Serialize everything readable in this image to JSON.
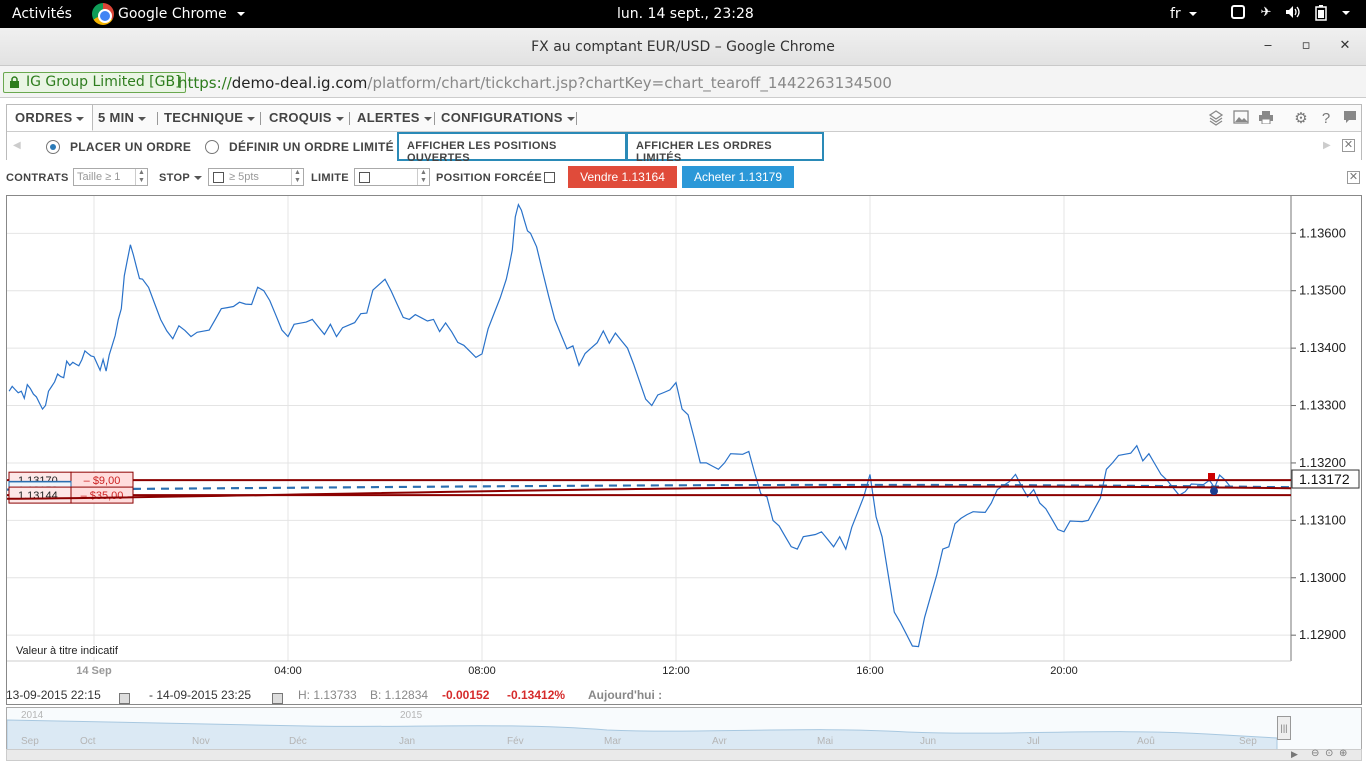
{
  "os": {
    "activities": "Activités",
    "app_name": "Google Chrome",
    "clock": "lun. 14 sept., 23:28",
    "lang": "fr"
  },
  "window": {
    "title": "FX au comptant EUR/USD – Google Chrome"
  },
  "address": {
    "cert": "IG Group Limited [GB]",
    "scheme": "https://",
    "domain": "demo-deal.ig.com",
    "path": "/platform/chart/tickchart.jsp?chartKey=chart_tearoff_1442263134500"
  },
  "menu": {
    "items": [
      "ORDRES",
      "5 MIN",
      "TECHNIQUE",
      "CROQUIS",
      "ALERTES",
      "CONFIGURATIONS"
    ],
    "radio_place": "PLACER UN ORDRE",
    "radio_limit": "DÉFINIR UN ORDRE LIMITÉ",
    "btn_positions": "AFFICHER LES POSITIONS OUVERTES",
    "btn_orders": "AFFICHER LES ORDRES LIMITÉS"
  },
  "ticket": {
    "contracts_label": "CONTRATS",
    "size_placeholder": "Taille ≥ 1",
    "stop_label": "STOP",
    "stop_placeholder": "≥ 5pts",
    "limit_label": "LIMITE",
    "forced_label": "POSITION FORCÉE",
    "sell": "Vendre 1.13164",
    "buy": "Acheter 1.13179"
  },
  "chart": {
    "indicative": "Valeur à titre indicatif",
    "current_price": "1.13172",
    "markers": [
      {
        "price": "1.13170",
        "pnl": "– $9,00",
        "color": "#8b0000",
        "style": "solid"
      },
      {
        "price": "1.13154",
        "pnl": "",
        "color": "#2a6fb0",
        "style": "dashed"
      },
      {
        "price": "1.13153",
        "pnl": "",
        "color": "#2a6fb0",
        "style": "dashed"
      },
      {
        "price": "1.13144",
        "pnl": "– $35,00",
        "color": "#8b0000",
        "style": "solid"
      }
    ]
  },
  "chart_data": {
    "type": "line",
    "series": [],
    "x": [
      "13 Sep 22:15",
      "13 Sep 22:30",
      "13 Sep 22:45",
      "13 Sep 23:00",
      "13 Sep 23:15",
      "13 Sep 23:30",
      "13 Sep 23:45",
      "14 Sep 00:00",
      "14 Sep 00:15",
      "14 Sep 00:30",
      "14 Sep 00:45",
      "14 Sep 01:00",
      "14 Sep 01:30",
      "14 Sep 02:00",
      "14 Sep 02:30",
      "14 Sep 03:00",
      "14 Sep 03:30",
      "14 Sep 04:00",
      "14 Sep 04:30",
      "14 Sep 05:00",
      "14 Sep 05:30",
      "14 Sep 06:00",
      "14 Sep 06:30",
      "14 Sep 07:00",
      "14 Sep 07:30",
      "14 Sep 08:00",
      "14 Sep 08:30",
      "14 Sep 08:45",
      "14 Sep 09:00",
      "14 Sep 09:30",
      "14 Sep 10:00",
      "14 Sep 10:30",
      "14 Sep 11:00",
      "14 Sep 11:30",
      "14 Sep 12:00",
      "14 Sep 12:30",
      "14 Sep 13:00",
      "14 Sep 13:30",
      "14 Sep 14:00",
      "14 Sep 14:30",
      "14 Sep 15:00",
      "14 Sep 15:30",
      "14 Sep 16:00",
      "14 Sep 16:30",
      "14 Sep 17:00",
      "14 Sep 17:30",
      "14 Sep 18:00",
      "14 Sep 18:30",
      "14 Sep 19:00",
      "14 Sep 19:30",
      "14 Sep 20:00",
      "14 Sep 20:30",
      "14 Sep 21:00",
      "14 Sep 21:30",
      "14 Sep 22:00",
      "14 Sep 22:30",
      "14 Sep 23:00",
      "14 Sep 23:25"
    ],
    "values": [
      1.13325,
      1.13325,
      1.1332,
      1.133,
      1.13355,
      1.1337,
      1.1338,
      1.13385,
      1.1336,
      1.1345,
      1.1358,
      1.1352,
      1.1343,
      1.1342,
      1.1345,
      1.1348,
      1.135,
      1.1342,
      1.1345,
      1.1342,
      1.1346,
      1.1352,
      1.1345,
      1.1345,
      1.1341,
      1.1339,
      1.1352,
      1.1365,
      1.136,
      1.1345,
      1.1337,
      1.1343,
      1.134,
      1.133,
      1.1334,
      1.132,
      1.132,
      1.1322,
      1.131,
      1.1305,
      1.1308,
      1.1305,
      1.1318,
      1.1294,
      1.1288,
      1.1305,
      1.1311,
      1.1313,
      1.1318,
      1.1313,
      1.1308,
      1.131,
      1.132,
      1.1323,
      1.1318,
      1.1315,
      1.1317,
      1.1316
    ],
    "ylim": [
      1.12855,
      1.13665
    ],
    "yticks": [
      "1.13600",
      "1.13500",
      "1.13400",
      "1.13300",
      "1.13200",
      "1.13100",
      "1.13000",
      "1.12900"
    ],
    "xticks": [
      "14 Sep",
      "04:00",
      "08:00",
      "12:00",
      "16:00",
      "20:00"
    ],
    "grid": true
  },
  "range": {
    "from": "13-09-2015 22:15",
    "to": "- 14-09-2015 23:25",
    "high": "H: 1.13733",
    "low": "B: 1.12834",
    "change": "-0.00152",
    "change_pct": "-0.13412%",
    "today": "Aujourd'hui :"
  },
  "navigator": {
    "years": [
      "2014",
      "2015"
    ],
    "months": [
      "Sep",
      "Oct",
      "Nov",
      "Déc",
      "Jan",
      "Fév",
      "Mar",
      "Avr",
      "Mai",
      "Jun",
      "Jul",
      "Aoû",
      "Sep"
    ]
  }
}
